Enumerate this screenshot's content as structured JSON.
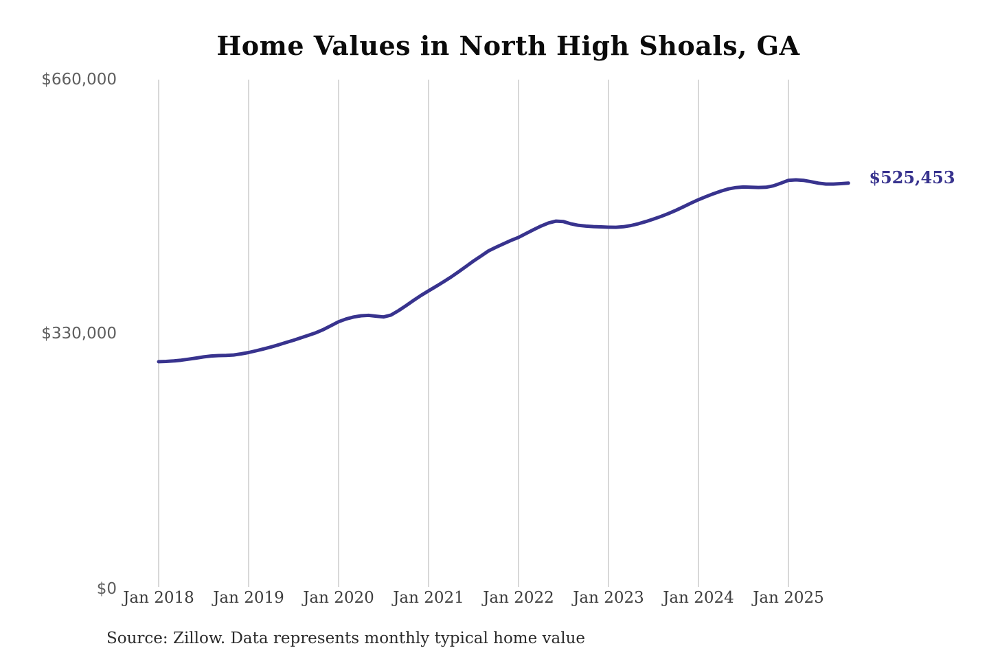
{
  "title": "Home Values in North High Shoals, GA",
  "source_note": "Source: Zillow. Data represents monthly typical home value",
  "end_label": "$525,453",
  "colors": {
    "line": "#38338E",
    "grid": "#bfbfbf",
    "y_label": "#5f5f5f",
    "x_label": "#3d3d3d",
    "title": "#0b0b0b",
    "source": "#2b2b2b",
    "end_label": "#38338E"
  },
  "chart_data": {
    "type": "line",
    "title": "Home Values in North High Shoals, GA",
    "series_name": "Monthly typical home value",
    "x_start": "2018-01",
    "x_end": "2025-09",
    "x_frequency": "monthly",
    "values": [
      293000,
      293400,
      294000,
      295000,
      296300,
      297800,
      299300,
      300400,
      301000,
      301200,
      301800,
      303200,
      305000,
      307200,
      309600,
      312200,
      315000,
      318000,
      321000,
      324200,
      327400,
      330800,
      335000,
      340000,
      345000,
      348600,
      351200,
      352800,
      353300,
      352200,
      351300,
      353800,
      359500,
      366000,
      372800,
      379300,
      385200,
      391000,
      397000,
      403200,
      410000,
      417000,
      424000,
      430600,
      437200,
      442000,
      446500,
      450800,
      454800,
      459800,
      464800,
      469500,
      473500,
      475900,
      475300,
      472400,
      470400,
      469400,
      468800,
      468400,
      468000,
      467900,
      468600,
      470200,
      472500,
      475400,
      478600,
      482000,
      485800,
      490000,
      494600,
      499300,
      503800,
      507800,
      511600,
      515000,
      517800,
      519600,
      520300,
      520000,
      519700,
      520000,
      521800,
      525300,
      529000,
      529600,
      529000,
      527200,
      525300,
      524200,
      524200,
      524700,
      525453
    ],
    "last_value": 525453,
    "last_value_label": "$525,453",
    "x_tick_labels": [
      "Jan 2018",
      "Jan 2019",
      "Jan 2020",
      "Jan 2021",
      "Jan 2022",
      "Jan 2023",
      "Jan 2024",
      "Jan 2025"
    ],
    "y_ticks": [
      {
        "label": "$0",
        "value": 0
      },
      {
        "label": "$330,000",
        "value": 330000
      },
      {
        "label": "$660,000",
        "value": 660000
      }
    ],
    "ylim": [
      0,
      660000
    ],
    "grid": "vertical-yearly",
    "legend": "none"
  }
}
